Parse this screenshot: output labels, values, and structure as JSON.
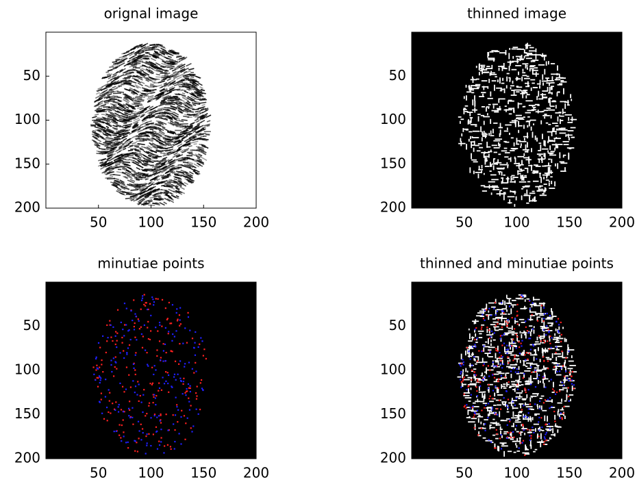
{
  "chart_data": [
    {
      "type": "image",
      "title": "orignal image",
      "xlim": [
        0,
        200
      ],
      "ylim": [
        0,
        200
      ],
      "y_reversed": true,
      "xticks": [
        50,
        100,
        150,
        200
      ],
      "yticks": [
        50,
        100,
        150,
        200
      ],
      "background": "#ffffff",
      "colors": [
        "#000000"
      ]
    },
    {
      "type": "image",
      "title": "thinned image",
      "xlim": [
        0,
        200
      ],
      "ylim": [
        0,
        200
      ],
      "y_reversed": true,
      "xticks": [
        50,
        100,
        150,
        200
      ],
      "yticks": [
        50,
        100,
        150,
        200
      ],
      "background": "#000000",
      "colors": [
        "#ffffff"
      ]
    },
    {
      "type": "image",
      "title": "minutiae points",
      "xlim": [
        0,
        200
      ],
      "ylim": [
        0,
        200
      ],
      "y_reversed": true,
      "xticks": [
        50,
        100,
        150,
        200
      ],
      "yticks": [
        50,
        100,
        150,
        200
      ],
      "background": "#000000",
      "colors": [
        "#ff2020",
        "#2020ff"
      ]
    },
    {
      "type": "image",
      "title": "thinned and minutiae points",
      "xlim": [
        0,
        200
      ],
      "ylim": [
        0,
        200
      ],
      "y_reversed": true,
      "xticks": [
        50,
        100,
        150,
        200
      ],
      "yticks": [
        50,
        100,
        150,
        200
      ],
      "background": "#000000",
      "colors": [
        "#ffffff",
        "#ff2020",
        "#2020ff"
      ]
    }
  ]
}
